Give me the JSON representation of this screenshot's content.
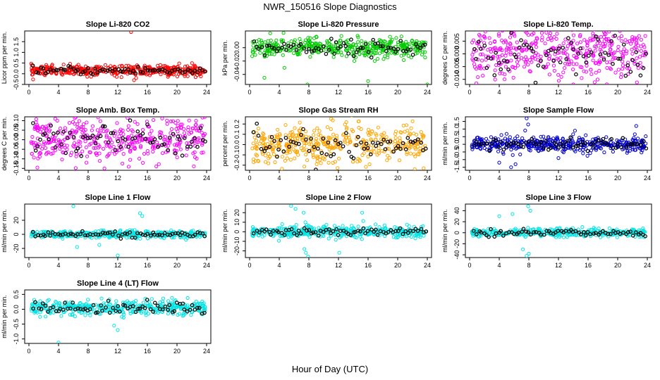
{
  "figure": {
    "title": "NWR_150516  Slope Diagnostics",
    "xlabel": "Hour of Day (UTC)"
  },
  "chart_data": [
    {
      "type": "scatter",
      "title": "Slope Li-820 CO2",
      "ylabel": "Licor ppm per min.",
      "color": "#ff0000",
      "xlim": [
        0,
        24
      ],
      "xticks": [
        0,
        4,
        8,
        12,
        16,
        20,
        24
      ],
      "ylim": [
        -0.5,
        2.0
      ],
      "yticks": [
        -0.5,
        0.0,
        0.5,
        1.0,
        1.5
      ],
      "ytick_labels": [
        "-0.5",
        "0.0",
        "0.5",
        "1.0",
        "1.5"
      ],
      "center": 0.15,
      "spread": 0.12,
      "outliers": [
        {
          "x": 13.8,
          "y": 1.95
        },
        {
          "x": 14.2,
          "y": -0.3
        }
      ]
    },
    {
      "type": "scatter",
      "title": "Slope Li-820 Pressure",
      "ylabel": "kPa per min.",
      "color": "#00cc00",
      "xlim": [
        0,
        24
      ],
      "xticks": [
        0,
        4,
        8,
        12,
        16,
        20,
        24
      ],
      "ylim": [
        -0.055,
        0.025
      ],
      "yticks": [
        -0.04,
        -0.02,
        0.0
      ],
      "ytick_labels": [
        "-0.04",
        "-0.02",
        "0.00"
      ],
      "center": 0.0,
      "spread": 0.007,
      "outliers": [
        {
          "x": 2.0,
          "y": -0.045
        },
        {
          "x": 7.8,
          "y": -0.055
        },
        {
          "x": 16.0,
          "y": -0.05
        },
        {
          "x": 24.0,
          "y": -0.055
        },
        {
          "x": 4.7,
          "y": -0.03
        }
      ]
    },
    {
      "type": "scatter",
      "title": "Slope Li-820 Temp.",
      "ylabel": "degrees C per min.",
      "color": "#ff00ff",
      "xlim": [
        0,
        24
      ],
      "xticks": [
        0,
        4,
        8,
        12,
        16,
        20,
        24
      ],
      "ylim": [
        -0.012,
        0.009
      ],
      "yticks": [
        -0.01,
        -0.005,
        0.0,
        0.005
      ],
      "ytick_labels": [
        "-0.010",
        "-0.005",
        "0.000",
        "0.005"
      ],
      "center": 0.0,
      "spread": 0.005,
      "outliers": [
        {
          "x": 14.0,
          "y": -0.012
        },
        {
          "x": 6.0,
          "y": 0.009
        }
      ]
    },
    {
      "type": "scatter",
      "title": "Slope Amb. Box Temp.",
      "ylabel": "degrees C per min.",
      "color": "#ff00ff",
      "xlim": [
        0,
        24
      ],
      "xticks": [
        0,
        4,
        8,
        12,
        16,
        20,
        24
      ],
      "ylim": [
        -0.16,
        0.12
      ],
      "yticks": [
        -0.15,
        -0.1,
        -0.05,
        0.0,
        0.05,
        0.1
      ],
      "ytick_labels": [
        "-0.15",
        "-0.10",
        "-0.05",
        "0.00",
        "0.05",
        "0.10"
      ],
      "center": 0.0,
      "spread": 0.06,
      "outliers": [
        {
          "x": 10.2,
          "y": -0.15
        }
      ]
    },
    {
      "type": "scatter",
      "title": "Slope Gas Stream RH",
      "ylabel": "percent per min.",
      "color": "#ffa500",
      "xlim": [
        0,
        24
      ],
      "xticks": [
        0,
        4,
        8,
        12,
        16,
        20,
        24
      ],
      "ylim": [
        -0.25,
        0.27
      ],
      "yticks": [
        -0.2,
        -0.1,
        0.0,
        0.1,
        0.2
      ],
      "ytick_labels": [
        "-0.2",
        "-0.1",
        "0.0",
        "0.1",
        "0.2"
      ],
      "center": 0.0,
      "spread": 0.09,
      "outliers": [
        {
          "x": 11.0,
          "y": 0.25
        },
        {
          "x": 23.5,
          "y": -0.23
        }
      ]
    },
    {
      "type": "scatter",
      "title": "Slope Sample Flow",
      "ylabel": "ml/min per min.",
      "color": "#0000cc",
      "xlim": [
        0,
        24
      ],
      "xticks": [
        0,
        4,
        8,
        12,
        16,
        20,
        24
      ],
      "ylim": [
        -1.7,
        1.8
      ],
      "yticks": [
        -1.5,
        -1.0,
        -0.5,
        0.0,
        0.5,
        1.0,
        1.5
      ],
      "ytick_labels": [
        "-1.5",
        "-1.0",
        "-0.5",
        "0.0",
        "0.5",
        "1.0",
        "1.5"
      ],
      "center": 0.0,
      "spread": 0.25,
      "outliers": [
        {
          "x": 7.7,
          "y": 1.7
        },
        {
          "x": 7.9,
          "y": 1.3
        },
        {
          "x": 7.5,
          "y": 0.9
        },
        {
          "x": 5.6,
          "y": -1.5
        },
        {
          "x": 6.2,
          "y": -1.3
        },
        {
          "x": 4.0,
          "y": -1.2
        },
        {
          "x": 12.0,
          "y": -0.9
        },
        {
          "x": 22.5,
          "y": 1.2
        }
      ]
    },
    {
      "type": "scatter",
      "title": "Slope Line 1 Flow",
      "ylabel": "ml/min per min.",
      "color": "#00e5e5",
      "xlim": [
        0,
        24
      ],
      "xticks": [
        0,
        4,
        8,
        12,
        16,
        20,
        24
      ],
      "ylim": [
        -33,
        43
      ],
      "yticks": [
        -20,
        0,
        20
      ],
      "ytick_labels": [
        "-20",
        "0",
        "20"
      ],
      "center": 0.0,
      "spread": 2.5,
      "outliers": [
        {
          "x": 6.0,
          "y": 40
        },
        {
          "x": 15.0,
          "y": 30
        },
        {
          "x": 15.3,
          "y": 26
        },
        {
          "x": 12.0,
          "y": -30
        },
        {
          "x": 6.5,
          "y": -18
        },
        {
          "x": 9.5,
          "y": -15
        }
      ]
    },
    {
      "type": "scatter",
      "title": "Slope Line 2 Flow",
      "ylabel": "ml/min per min.",
      "color": "#00e5e5",
      "xlim": [
        0,
        24
      ],
      "xticks": [
        0,
        4,
        8,
        12,
        16,
        20,
        24
      ],
      "ylim": [
        -27,
        29
      ],
      "yticks": [
        -20,
        -10,
        0,
        10,
        20
      ],
      "ytick_labels": [
        "-20",
        "-10",
        "0",
        "10",
        "20"
      ],
      "center": 0.0,
      "spread": 3.0,
      "outliers": [
        {
          "x": 5.6,
          "y": 27
        },
        {
          "x": 6.2,
          "y": 24
        },
        {
          "x": 7.3,
          "y": 20
        },
        {
          "x": 7.6,
          "y": -22
        },
        {
          "x": 7.9,
          "y": -26
        },
        {
          "x": 7.4,
          "y": -18
        },
        {
          "x": 12.1,
          "y": -22
        },
        {
          "x": 15.2,
          "y": 20
        },
        {
          "x": 4.4,
          "y": 8
        }
      ]
    },
    {
      "type": "scatter",
      "title": "Slope Line 3 Flow",
      "ylabel": "ml/min per min.",
      "color": "#00e5e5",
      "xlim": [
        0,
        24
      ],
      "xticks": [
        0,
        4,
        8,
        12,
        16,
        20,
        24
      ],
      "ylim": [
        -45,
        52
      ],
      "yticks": [
        -40,
        -20,
        0,
        20,
        40
      ],
      "ytick_labels": [
        "-40",
        "-20",
        "0",
        "20",
        "40"
      ],
      "center": 0.0,
      "spread": 3.5,
      "outliers": [
        {
          "x": 7.9,
          "y": 48
        },
        {
          "x": 8.2,
          "y": 40
        },
        {
          "x": 7.2,
          "y": -30
        },
        {
          "x": 7.7,
          "y": -42
        },
        {
          "x": 8.0,
          "y": -38
        },
        {
          "x": 4.0,
          "y": 30
        },
        {
          "x": 5.8,
          "y": 34
        }
      ]
    },
    {
      "type": "scatter",
      "title": "Slope Line 4 (LT) Flow",
      "ylabel": "ml/min per min.",
      "color": "#00e5e5",
      "xlim": [
        0,
        24
      ],
      "xticks": [
        0,
        4,
        8,
        12,
        16,
        20,
        24
      ],
      "ylim": [
        -1.15,
        0.65
      ],
      "yticks": [
        -1.0,
        -0.5,
        0.0,
        0.5
      ],
      "ytick_labels": [
        "-1.0",
        "-0.5",
        "0.0",
        "0.5"
      ],
      "center": 0.05,
      "spread": 0.12,
      "outliers": [
        {
          "x": 4.0,
          "y": -1.12
        },
        {
          "x": 12.0,
          "y": -0.7
        },
        {
          "x": 11.5,
          "y": -0.55
        }
      ]
    }
  ]
}
